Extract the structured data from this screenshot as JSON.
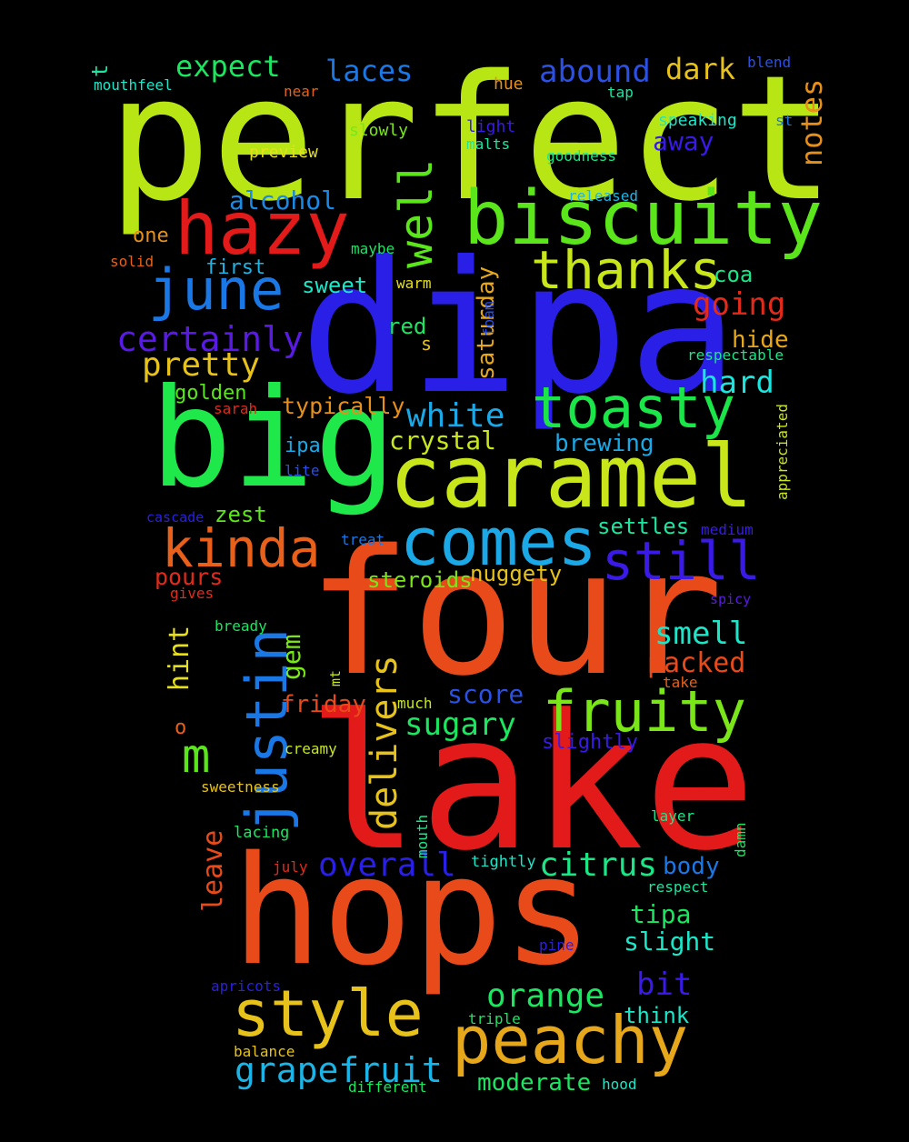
{
  "words": [
    {
      "text": "perfect",
      "color": "#b8e614"
    },
    {
      "text": "dipa",
      "color": "#2a1fe6"
    },
    {
      "text": "four",
      "color": "#e84a1a"
    },
    {
      "text": "lake",
      "color": "#e21a1a"
    },
    {
      "text": "hops",
      "color": "#e84a1a"
    },
    {
      "text": "big",
      "color": "#1fe84a"
    },
    {
      "text": "caramel",
      "color": "#c8e61a"
    },
    {
      "text": "biscuity",
      "color": "#5ae61a"
    },
    {
      "text": "hazy",
      "color": "#e21a1a"
    },
    {
      "text": "comes",
      "color": "#1aa8e6"
    },
    {
      "text": "toasty",
      "color": "#1ae64a"
    },
    {
      "text": "style",
      "color": "#e6c21a"
    },
    {
      "text": "peachy",
      "color": "#e6a81a"
    },
    {
      "text": "justin",
      "color": "#1a78e6"
    },
    {
      "text": "june",
      "color": "#1a78e6"
    },
    {
      "text": "thanks",
      "color": "#c8e61a"
    },
    {
      "text": "kinda",
      "color": "#e8601a"
    },
    {
      "text": "still",
      "color": "#3a1ae6"
    },
    {
      "text": "fruity",
      "color": "#7ae61a"
    },
    {
      "text": "well",
      "color": "#5ae61a"
    },
    {
      "text": "certainly",
      "color": "#5a1ae6"
    },
    {
      "text": "delivers",
      "color": "#e6c21a"
    },
    {
      "text": "white",
      "color": "#1aa8e6"
    },
    {
      "text": "grapefruit",
      "color": "#1ab4e6"
    },
    {
      "text": "orange",
      "color": "#1ae660"
    },
    {
      "text": "m",
      "color": "#5ae61a"
    },
    {
      "text": "going",
      "color": "#e22a1a"
    },
    {
      "text": "pretty",
      "color": "#e6c21a"
    },
    {
      "text": "smell",
      "color": "#1ae6c8"
    },
    {
      "text": "citrus",
      "color": "#1ae688"
    },
    {
      "text": "sugary",
      "color": "#1ae660"
    },
    {
      "text": "overall",
      "color": "#2a1fe6"
    },
    {
      "text": "hard",
      "color": "#1ae6e0"
    },
    {
      "text": "expect",
      "color": "#1ae660"
    },
    {
      "text": "laces",
      "color": "#1a78e6"
    },
    {
      "text": "abound",
      "color": "#2a50e6"
    },
    {
      "text": "dark",
      "color": "#e6c21a"
    },
    {
      "text": "notes",
      "color": "#e6901a"
    },
    {
      "text": "bit",
      "color": "#3a1ae6"
    },
    {
      "text": "crystal",
      "color": "#c8e61a"
    },
    {
      "text": "hint",
      "color": "#e6e01a"
    },
    {
      "text": "tipa",
      "color": "#1ae660"
    },
    {
      "text": "alcohol",
      "color": "#1a8ae6"
    },
    {
      "text": "leave",
      "color": "#e84a1a"
    },
    {
      "text": "packed",
      "color": "#e84a1a"
    },
    {
      "text": "brewing",
      "color": "#1aa8e6"
    },
    {
      "text": "slight",
      "color": "#1ae6c8"
    },
    {
      "text": "moderate",
      "color": "#1ae660"
    },
    {
      "text": "hide",
      "color": "#e6a81a"
    },
    {
      "text": "steroids",
      "color": "#7ae61a"
    },
    {
      "text": "nuggety",
      "color": "#e6c21a"
    },
    {
      "text": "gem",
      "color": "#7ae61a"
    },
    {
      "text": "score",
      "color": "#2a50e6"
    },
    {
      "text": "saturday",
      "color": "#e6a81a"
    },
    {
      "text": "typically",
      "color": "#e6901a"
    },
    {
      "text": "friday",
      "color": "#e84a1a"
    },
    {
      "text": "settles",
      "color": "#1ae6a0"
    },
    {
      "text": "away",
      "color": "#3a1ae6"
    },
    {
      "text": "body",
      "color": "#1a78e6"
    },
    {
      "text": "think",
      "color": "#1ae6c8"
    },
    {
      "text": "pours",
      "color": "#e22a1a"
    },
    {
      "text": "golden",
      "color": "#5ae61a"
    },
    {
      "text": "sweet",
      "color": "#1ae6c8"
    },
    {
      "text": "zest",
      "color": "#5ae61a"
    },
    {
      "text": "slightly",
      "color": "#3a1ae6"
    },
    {
      "text": "red",
      "color": "#1ae660"
    },
    {
      "text": "ipa",
      "color": "#1aa8e6"
    },
    {
      "text": "coa",
      "color": "#1ae688"
    },
    {
      "text": "first",
      "color": "#1ab4e6"
    },
    {
      "text": "one",
      "color": "#e6901a"
    },
    {
      "text": "t",
      "color": "#1ae6a0"
    },
    {
      "text": "o",
      "color": "#e6601a"
    },
    {
      "text": "mouthfeel",
      "color": "#1ae6c8"
    },
    {
      "text": "near",
      "color": "#e6601a"
    },
    {
      "text": "hue",
      "color": "#e6901a"
    },
    {
      "text": "tap",
      "color": "#1ae6a0"
    },
    {
      "text": "blend",
      "color": "#2a50e6"
    },
    {
      "text": "st",
      "color": "#1a78e6"
    },
    {
      "text": "speaking",
      "color": "#1ae6c8"
    },
    {
      "text": "light",
      "color": "#3a1ae6"
    },
    {
      "text": "malts",
      "color": "#1ae6a0"
    },
    {
      "text": "slowly",
      "color": "#7ae61a"
    },
    {
      "text": "preview",
      "color": "#e6e01a"
    },
    {
      "text": "goodness",
      "color": "#1ae688"
    },
    {
      "text": "released",
      "color": "#1ab4e6"
    },
    {
      "text": "maybe",
      "color": "#1ae660"
    },
    {
      "text": "solid",
      "color": "#e6601a"
    },
    {
      "text": "warm",
      "color": "#e6e01a"
    },
    {
      "text": "foam",
      "color": "#2a50e6"
    },
    {
      "text": "s",
      "color": "#e6c21a"
    },
    {
      "text": "respectable",
      "color": "#1ae688"
    },
    {
      "text": "sarah",
      "color": "#e22a1a"
    },
    {
      "text": "appreciated",
      "color": "#c8e61a"
    },
    {
      "text": "lite",
      "color": "#2a50e6"
    },
    {
      "text": "cascade",
      "color": "#2a1fe6"
    },
    {
      "text": "treat",
      "color": "#1a78e6"
    },
    {
      "text": "medium",
      "color": "#3a1ae6"
    },
    {
      "text": "gives",
      "color": "#e22a1a"
    },
    {
      "text": "spicy",
      "color": "#5a1ae6"
    },
    {
      "text": "bready",
      "color": "#1ae660"
    },
    {
      "text": "mt",
      "color": "#c8e61a"
    },
    {
      "text": "take",
      "color": "#e6601a"
    },
    {
      "text": "much",
      "color": "#c8e61a"
    },
    {
      "text": "creamy",
      "color": "#c8e61a"
    },
    {
      "text": "sweetness",
      "color": "#e6c21a"
    },
    {
      "text": "lacing",
      "color": "#1ae660"
    },
    {
      "text": "mouth",
      "color": "#1ae688"
    },
    {
      "text": "layer",
      "color": "#1ae688"
    },
    {
      "text": "damn",
      "color": "#1ae660"
    },
    {
      "text": "july",
      "color": "#e22a1a"
    },
    {
      "text": "tightly",
      "color": "#1ae6c8"
    },
    {
      "text": "respect",
      "color": "#1ae6a0"
    },
    {
      "text": "pine",
      "color": "#2a1fe6"
    },
    {
      "text": "apricots",
      "color": "#2a1fe6"
    },
    {
      "text": "triple",
      "color": "#1ae660"
    },
    {
      "text": "balance",
      "color": "#e6c21a"
    },
    {
      "text": "different",
      "color": "#1ae660"
    },
    {
      "text": "hood",
      "color": "#1ae6c8"
    }
  ]
}
